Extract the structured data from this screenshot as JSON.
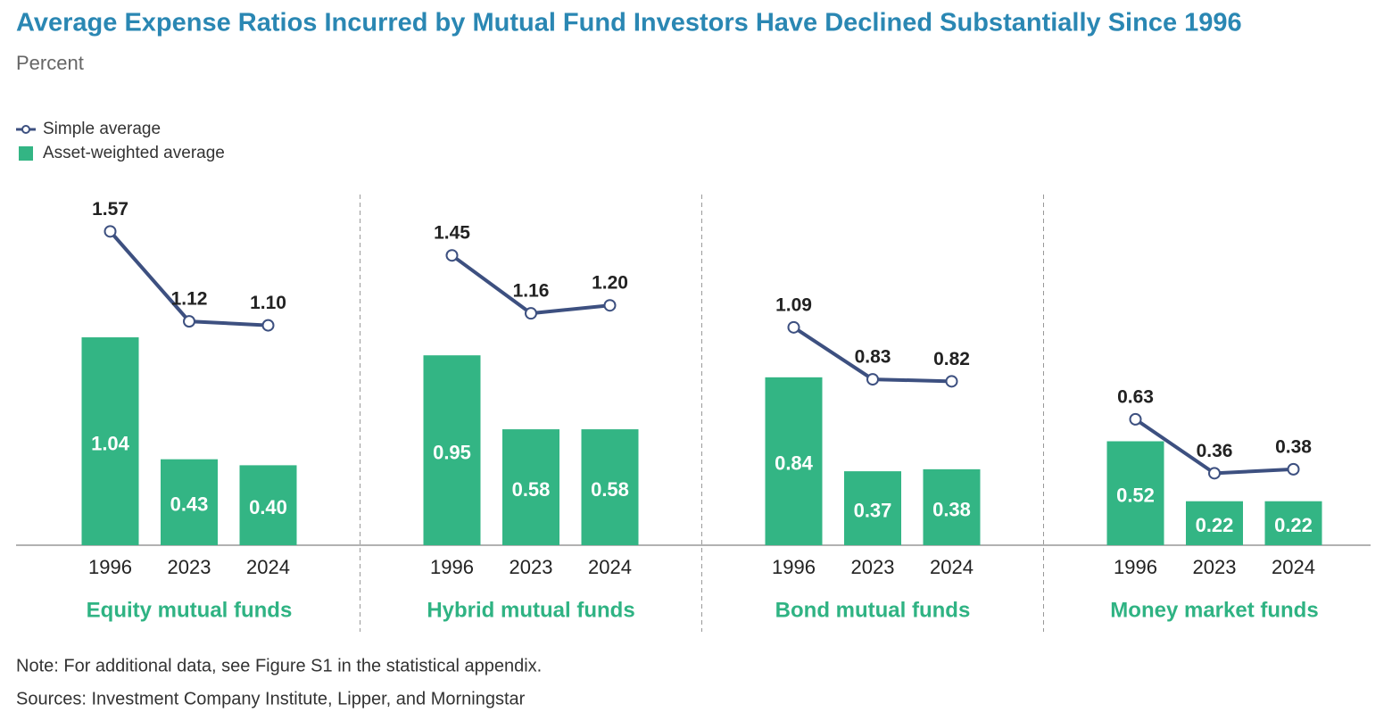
{
  "chart_data": {
    "type": "bar",
    "title": "Average Expense Ratios Incurred by Mutual Fund Investors Have Declined Substantially Since 1996",
    "subtitle": "Percent",
    "panels": [
      "Equity mutual funds",
      "Hybrid mutual funds",
      "Bond mutual funds",
      "Money market funds"
    ],
    "categories": [
      "1996",
      "2023",
      "2024"
    ],
    "series": [
      {
        "name": "Simple average",
        "type": "line",
        "color": "#3d5080",
        "values": [
          [
            1.57,
            1.12,
            1.1
          ],
          [
            1.45,
            1.16,
            1.2
          ],
          [
            1.09,
            0.83,
            0.82
          ],
          [
            0.63,
            0.36,
            0.38
          ]
        ],
        "value_labels": [
          [
            "1.57",
            "1.12",
            "1.10"
          ],
          [
            "1.45",
            "1.16",
            "1.20"
          ],
          [
            "1.09",
            "0.83",
            "0.82"
          ],
          [
            "0.63",
            "0.36",
            "0.38"
          ]
        ]
      },
      {
        "name": "Asset-weighted average",
        "type": "bar",
        "color": "#33b584",
        "values": [
          [
            1.04,
            0.43,
            0.4
          ],
          [
            0.95,
            0.58,
            0.58
          ],
          [
            0.84,
            0.37,
            0.38
          ],
          [
            0.52,
            0.22,
            0.22
          ]
        ],
        "value_labels": [
          [
            "1.04",
            "0.43",
            "0.40"
          ],
          [
            "0.95",
            "0.58",
            "0.58"
          ],
          [
            "0.84",
            "0.37",
            "0.38"
          ],
          [
            "0.52",
            "0.22",
            "0.22"
          ]
        ]
      }
    ],
    "ylim": [
      0,
      1.75
    ],
    "note": "Note: For additional data, see Figure S1 in the statistical appendix.",
    "sources": "Sources: Investment Company Institute, Lipper, and Morningstar"
  }
}
